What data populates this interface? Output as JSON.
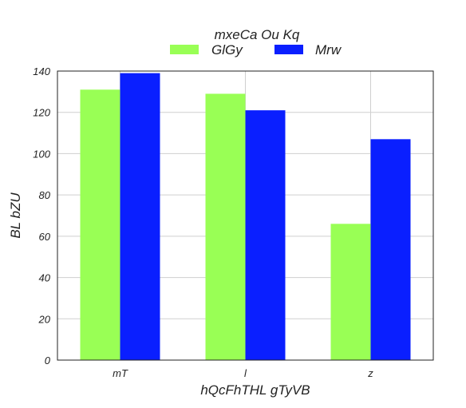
{
  "chart_data": {
    "type": "bar",
    "categories": [
      "mT",
      "l",
      "z"
    ],
    "series": [
      {
        "name": "GlGy",
        "color": "#99ff55",
        "values": [
          131,
          129,
          66
        ]
      },
      {
        "name": "Mrw",
        "color": "#0a1fff",
        "values": [
          139,
          121,
          107
        ]
      }
    ],
    "legend_title": "mxeCa Ou Kq",
    "legend_position": "top-center",
    "xlabel": "hQcFhTHL gTyVB",
    "ylabel": "BL  bZU",
    "ylim": [
      0,
      140
    ],
    "yticks": [
      0,
      20,
      40,
      60,
      80,
      100,
      120,
      140
    ],
    "grid": true
  }
}
